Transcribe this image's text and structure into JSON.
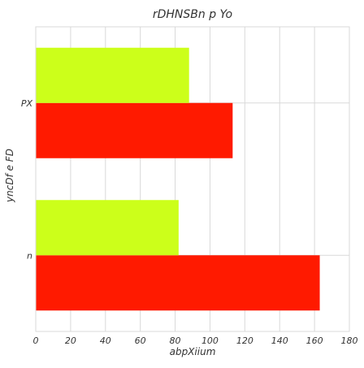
{
  "chart_data": {
    "type": "bar",
    "orientation": "horizontal",
    "title": "rDHNSBn p Yo",
    "xlabel": "abpXiium",
    "ylabel": "yncDf e FD",
    "categories": [
      "n",
      "PX"
    ],
    "series": [
      {
        "values": [
          163,
          113
        ],
        "color": "#ff1a00"
      },
      {
        "values": [
          82,
          88
        ],
        "color": "#ccff1a"
      }
    ],
    "xlim": [
      0,
      180
    ],
    "xticks": [
      0,
      20,
      40,
      60,
      80,
      100,
      120,
      140,
      160,
      180
    ],
    "grid": true,
    "legend": "none"
  }
}
